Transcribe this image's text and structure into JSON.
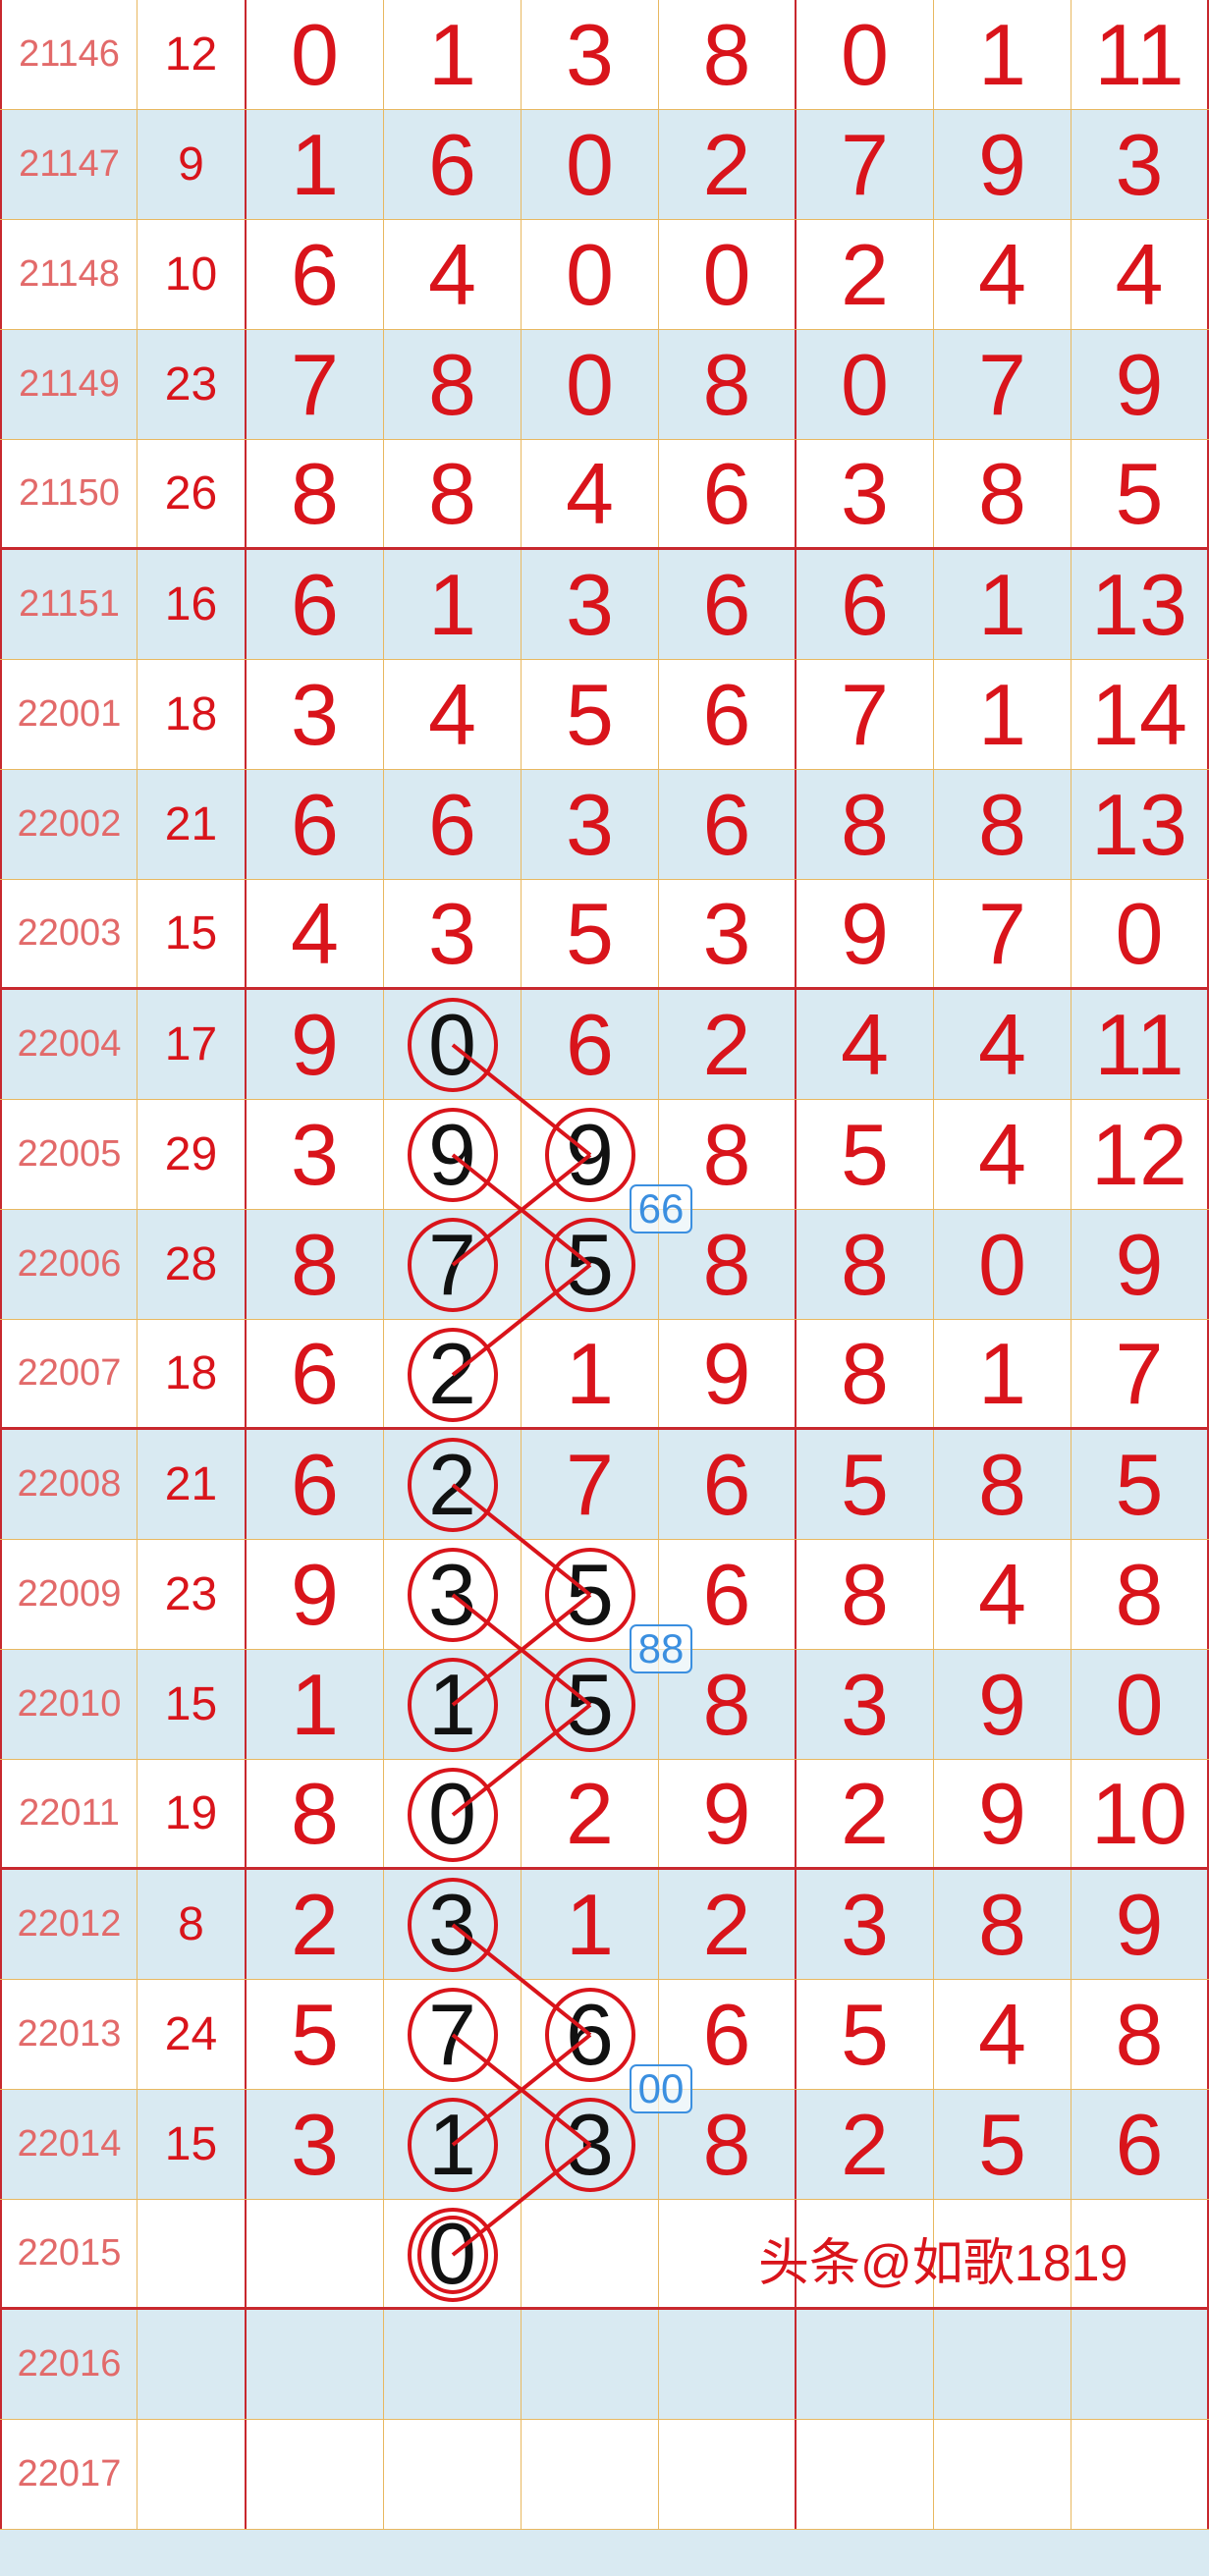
{
  "colors": {
    "digit": "#d9141b",
    "issue": "#e26a6a",
    "circle": "#d9141b",
    "circled_digit": "#111111",
    "badge": "#3b8fe0",
    "row_alt": "#d9eaf2"
  },
  "rows": [
    {
      "issue": "21146",
      "sum": "12",
      "digits": [
        "0",
        "1",
        "3",
        "8",
        "0",
        "1",
        "11"
      ],
      "circled": []
    },
    {
      "issue": "21147",
      "sum": "9",
      "digits": [
        "1",
        "6",
        "0",
        "2",
        "7",
        "9",
        "3"
      ],
      "circled": []
    },
    {
      "issue": "21148",
      "sum": "10",
      "digits": [
        "6",
        "4",
        "0",
        "0",
        "2",
        "4",
        "4"
      ],
      "circled": []
    },
    {
      "issue": "21149",
      "sum": "23",
      "digits": [
        "7",
        "8",
        "0",
        "8",
        "0",
        "7",
        "9"
      ],
      "circled": []
    },
    {
      "issue": "21150",
      "sum": "26",
      "digits": [
        "8",
        "8",
        "4",
        "6",
        "3",
        "8",
        "5"
      ],
      "circled": []
    },
    {
      "issue": "21151",
      "sum": "16",
      "digits": [
        "6",
        "1",
        "3",
        "6",
        "6",
        "1",
        "13"
      ],
      "circled": []
    },
    {
      "issue": "22001",
      "sum": "18",
      "digits": [
        "3",
        "4",
        "5",
        "6",
        "7",
        "1",
        "14"
      ],
      "circled": []
    },
    {
      "issue": "22002",
      "sum": "21",
      "digits": [
        "6",
        "6",
        "3",
        "6",
        "8",
        "8",
        "13"
      ],
      "circled": []
    },
    {
      "issue": "22003",
      "sum": "15",
      "digits": [
        "4",
        "3",
        "5",
        "3",
        "9",
        "7",
        "0"
      ],
      "circled": []
    },
    {
      "issue": "22004",
      "sum": "17",
      "digits": [
        "9",
        "0",
        "6",
        "2",
        "4",
        "4",
        "11"
      ],
      "circled": [
        1
      ]
    },
    {
      "issue": "22005",
      "sum": "29",
      "digits": [
        "3",
        "9",
        "9",
        "8",
        "5",
        "4",
        "12"
      ],
      "circled": [
        1,
        2
      ]
    },
    {
      "issue": "22006",
      "sum": "28",
      "digits": [
        "8",
        "7",
        "5",
        "8",
        "8",
        "0",
        "9"
      ],
      "circled": [
        1,
        2
      ]
    },
    {
      "issue": "22007",
      "sum": "18",
      "digits": [
        "6",
        "2",
        "1",
        "9",
        "8",
        "1",
        "7"
      ],
      "circled": [
        1
      ]
    },
    {
      "issue": "22008",
      "sum": "21",
      "digits": [
        "6",
        "2",
        "7",
        "6",
        "5",
        "8",
        "5"
      ],
      "circled": [
        1
      ]
    },
    {
      "issue": "22009",
      "sum": "23",
      "digits": [
        "9",
        "3",
        "5",
        "6",
        "8",
        "4",
        "8"
      ],
      "circled": [
        1,
        2
      ]
    },
    {
      "issue": "22010",
      "sum": "15",
      "digits": [
        "1",
        "1",
        "5",
        "8",
        "3",
        "9",
        "0"
      ],
      "circled": [
        1,
        2
      ]
    },
    {
      "issue": "22011",
      "sum": "19",
      "digits": [
        "8",
        "0",
        "2",
        "9",
        "2",
        "9",
        "10"
      ],
      "circled": [
        1
      ]
    },
    {
      "issue": "22012",
      "sum": "8",
      "digits": [
        "2",
        "3",
        "1",
        "2",
        "3",
        "8",
        "9"
      ],
      "circled": [
        1
      ]
    },
    {
      "issue": "22013",
      "sum": "24",
      "digits": [
        "5",
        "7",
        "6",
        "6",
        "5",
        "4",
        "8"
      ],
      "circled": [
        1,
        2
      ]
    },
    {
      "issue": "22014",
      "sum": "15",
      "digits": [
        "3",
        "1",
        "3",
        "8",
        "2",
        "5",
        "6"
      ],
      "circled": [
        1,
        2
      ]
    },
    {
      "issue": "22015",
      "sum": "",
      "digits": [
        "",
        "0",
        "",
        "",
        "",
        "",
        ""
      ],
      "circled": [
        1
      ],
      "double_circled": [
        1
      ]
    },
    {
      "issue": "22016",
      "sum": "",
      "digits": [
        "",
        "",
        "",
        "",
        "",
        "",
        ""
      ],
      "circled": []
    },
    {
      "issue": "22017",
      "sum": "",
      "digits": [
        "",
        "",
        "",
        "",
        "",
        "",
        ""
      ],
      "circled": []
    }
  ],
  "connections": [
    [
      [
        9,
        1
      ],
      [
        10,
        2
      ]
    ],
    [
      [
        10,
        1
      ],
      [
        11,
        2
      ]
    ],
    [
      [
        11,
        1
      ],
      [
        10,
        2
      ]
    ],
    [
      [
        12,
        1
      ],
      [
        11,
        2
      ]
    ],
    [
      [
        13,
        1
      ],
      [
        14,
        2
      ]
    ],
    [
      [
        14,
        1
      ],
      [
        15,
        2
      ]
    ],
    [
      [
        15,
        1
      ],
      [
        14,
        2
      ]
    ],
    [
      [
        16,
        1
      ],
      [
        15,
        2
      ]
    ],
    [
      [
        17,
        1
      ],
      [
        18,
        2
      ]
    ],
    [
      [
        18,
        1
      ],
      [
        19,
        2
      ]
    ],
    [
      [
        19,
        1
      ],
      [
        18,
        2
      ]
    ],
    [
      [
        20,
        1
      ],
      [
        19,
        2
      ]
    ]
  ],
  "badges": [
    {
      "text": "66",
      "after_row": 10
    },
    {
      "text": "88",
      "after_row": 14
    },
    {
      "text": "00",
      "after_row": 18
    }
  ],
  "watermark": "头条@如歌1819"
}
